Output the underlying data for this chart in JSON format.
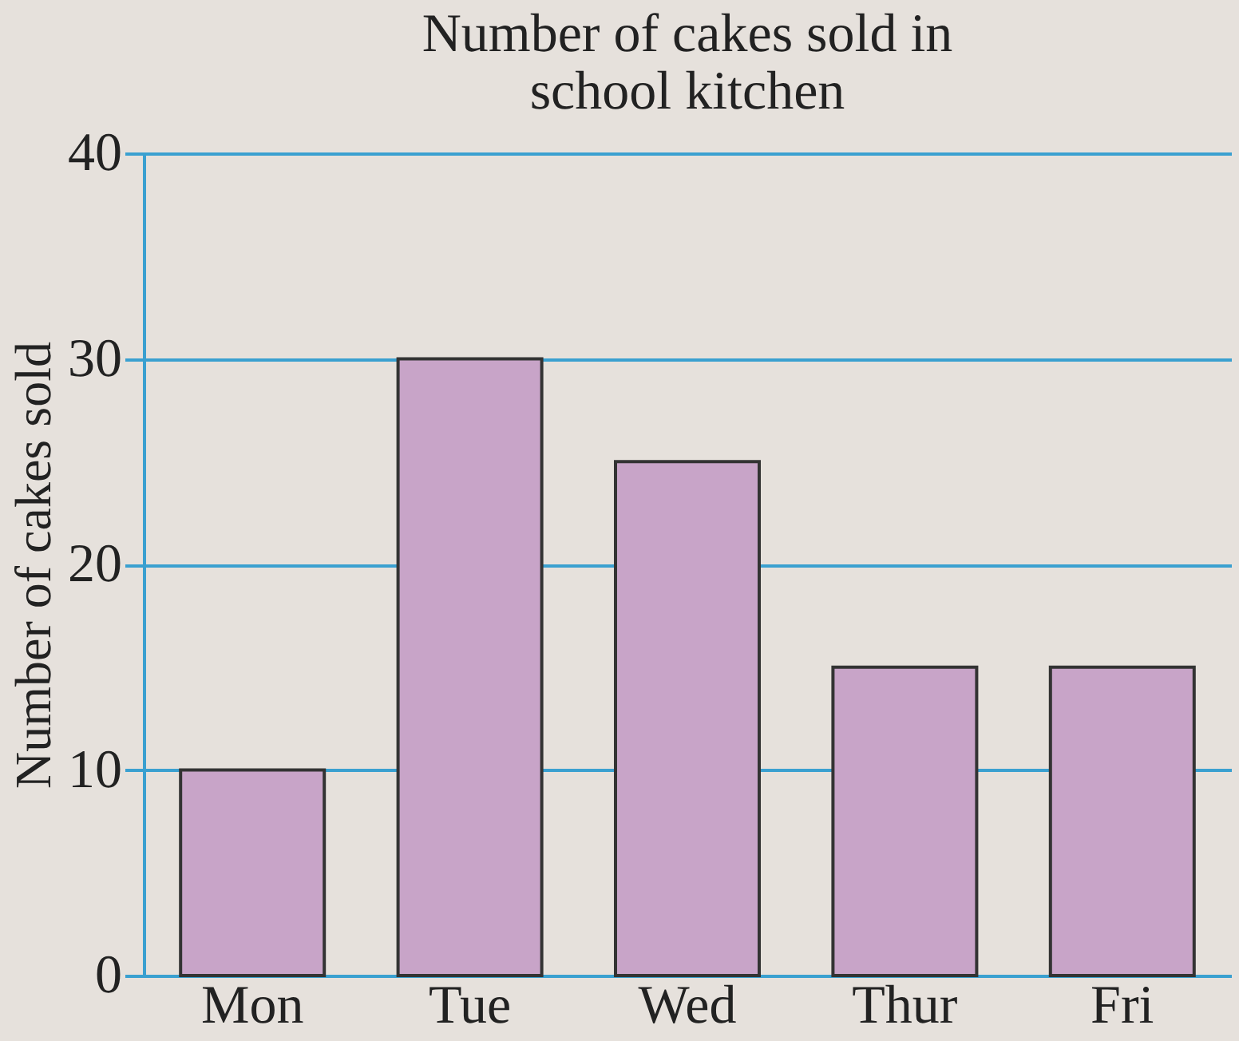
{
  "chart_data": {
    "type": "bar",
    "title": "Number of cakes sold in\nschool kitchen",
    "ylabel": "Number of cakes sold",
    "categories": [
      "Mon",
      "Tue",
      "Wed",
      "Thur",
      "Fri"
    ],
    "values": [
      10,
      30,
      25,
      15,
      15
    ],
    "color": "#c8a4c8",
    "ylim": [
      0,
      40
    ],
    "yticks": [
      0,
      10,
      20,
      30,
      40
    ],
    "grid": "y"
  }
}
